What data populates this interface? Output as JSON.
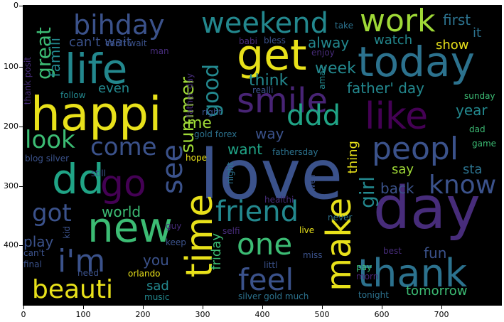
{
  "palette": {
    "yellow": "#e8e11a",
    "lime": "#9fd937",
    "green": "#3cbc74",
    "teal": "#20a486",
    "cyan": "#23888e",
    "steel": "#2c728e",
    "blue": "#3b528b",
    "indigo": "#472c7a",
    "purple": "#440154",
    "violet": "#482475"
  },
  "axes": {
    "y_ticks": [
      "0",
      "100",
      "200",
      "300",
      "400"
    ],
    "x_ticks": [
      "0",
      "100",
      "200",
      "300",
      "400",
      "500",
      "600",
      "700"
    ]
  },
  "words": [
    {
      "t": "love",
      "c": "blue"
    },
    {
      "t": "day",
      "c": "indigo"
    },
    {
      "t": "happi",
      "c": "yellow"
    },
    {
      "t": "today",
      "c": "steel"
    },
    {
      "t": "thank",
      "c": "steel"
    },
    {
      "t": "new",
      "c": "green"
    },
    {
      "t": "life",
      "c": "cyan"
    },
    {
      "t": "get",
      "c": "yellow"
    },
    {
      "t": "time",
      "c": "yellow"
    },
    {
      "t": "make",
      "c": "yellow"
    },
    {
      "t": "i'm",
      "c": "blue"
    },
    {
      "t": "dd",
      "c": "teal"
    },
    {
      "t": "go",
      "c": "purple"
    },
    {
      "t": "smile",
      "c": "violet"
    },
    {
      "t": "like",
      "c": "purple"
    },
    {
      "t": "work",
      "c": "lime"
    },
    {
      "t": "peopl",
      "c": "blue"
    },
    {
      "t": "weekend",
      "c": "cyan"
    },
    {
      "t": "bihday",
      "c": "blue"
    },
    {
      "t": "friend",
      "c": "cyan"
    },
    {
      "t": "one",
      "c": "green"
    },
    {
      "t": "feel",
      "c": "blue"
    },
    {
      "t": "see",
      "c": "blue"
    },
    {
      "t": "beauti",
      "c": "yellow"
    },
    {
      "t": "ddd",
      "c": "teal"
    },
    {
      "t": "know",
      "c": "blue"
    },
    {
      "t": "got",
      "c": "blue"
    },
    {
      "t": "look",
      "c": "green"
    },
    {
      "t": "come",
      "c": "blue"
    },
    {
      "t": "summer",
      "c": "lime"
    },
    {
      "t": "good",
      "c": "cyan"
    },
    {
      "t": "girl",
      "c": "cyan"
    },
    {
      "t": "great",
      "c": "green"
    },
    {
      "t": "famili",
      "c": "cyan"
    },
    {
      "t": "can't wait",
      "c": "blue"
    },
    {
      "t": "father' day",
      "c": "cyan"
    },
    {
      "t": "think",
      "c": "cyan"
    },
    {
      "t": "week",
      "c": "cyan"
    },
    {
      "t": "alway",
      "c": "cyan"
    },
    {
      "t": "watch",
      "c": "cyan"
    },
    {
      "t": "show",
      "c": "yellow"
    },
    {
      "t": "first",
      "c": "steel"
    },
    {
      "t": "it",
      "c": "steel"
    },
    {
      "t": "year",
      "c": "cyan"
    },
    {
      "t": "even",
      "c": "cyan"
    },
    {
      "t": "me",
      "c": "lime"
    },
    {
      "t": "way",
      "c": "blue"
    },
    {
      "t": "want",
      "c": "teal"
    },
    {
      "t": "thing",
      "c": "yellow"
    },
    {
      "t": "say",
      "c": "lime"
    },
    {
      "t": "sta",
      "c": "steel"
    },
    {
      "t": "back",
      "c": "blue"
    },
    {
      "t": "world",
      "c": "green"
    },
    {
      "t": "play",
      "c": "blue"
    },
    {
      "t": "you",
      "c": "blue"
    },
    {
      "t": "friday",
      "c": "green"
    },
    {
      "t": "fun",
      "c": "blue"
    },
    {
      "t": "tomorrow",
      "c": "green"
    },
    {
      "t": "sad",
      "c": "cyan"
    },
    {
      "t": "music",
      "c": "cyan"
    },
    {
      "t": "orlando",
      "c": "yellow"
    },
    {
      "t": "need",
      "c": "blue"
    },
    {
      "t": "final",
      "c": "blue"
    },
    {
      "t": "can't",
      "c": "blue"
    },
    {
      "t": "kid",
      "c": "blue"
    },
    {
      "t": "keep",
      "c": "blue"
    },
    {
      "t": "guy",
      "c": "indigo"
    },
    {
      "t": "selfi",
      "c": "indigo"
    },
    {
      "t": "live",
      "c": "yellow"
    },
    {
      "t": "littl",
      "c": "blue"
    },
    {
      "t": "miss",
      "c": "blue"
    },
    {
      "t": "pay",
      "c": "green"
    },
    {
      "t": "best",
      "c": "indigo"
    },
    {
      "t": "morn",
      "c": "violet"
    },
    {
      "t": "tonight",
      "c": "steel"
    },
    {
      "t": "silver gold much",
      "c": "steel"
    },
    {
      "t": "never",
      "c": "steel"
    },
    {
      "t": "healthi",
      "c": "indigo"
    },
    {
      "t": "well",
      "c": "blue"
    },
    {
      "t": "night",
      "c": "steel"
    },
    {
      "t": "hope",
      "c": "yellow"
    },
    {
      "t": "still",
      "c": "blue"
    },
    {
      "t": "blog silver",
      "c": "blue"
    },
    {
      "t": "gold forex",
      "c": "steel"
    },
    {
      "t": "fathersday",
      "c": "steel"
    },
    {
      "t": "right",
      "c": "blue"
    },
    {
      "t": "father day",
      "c": "indigo"
    },
    {
      "t": "realli",
      "c": "blue"
    },
    {
      "t": "amaz",
      "c": "cyan"
    },
    {
      "t": "enjoy",
      "c": "indigo"
    },
    {
      "t": "take",
      "c": "steel"
    },
    {
      "t": "babi",
      "c": "indigo"
    },
    {
      "t": "bless",
      "c": "blue"
    },
    {
      "t": "man",
      "c": "indigo"
    },
    {
      "t": "can't wait",
      "c": "blue"
    },
    {
      "t": "follow",
      "c": "cyan"
    },
    {
      "t": "thank posit",
      "c": "indigo"
    },
    {
      "t": "sunday",
      "c": "green"
    },
    {
      "t": "dad",
      "c": "green"
    },
    {
      "t": "game",
      "c": "green"
    }
  ]
}
